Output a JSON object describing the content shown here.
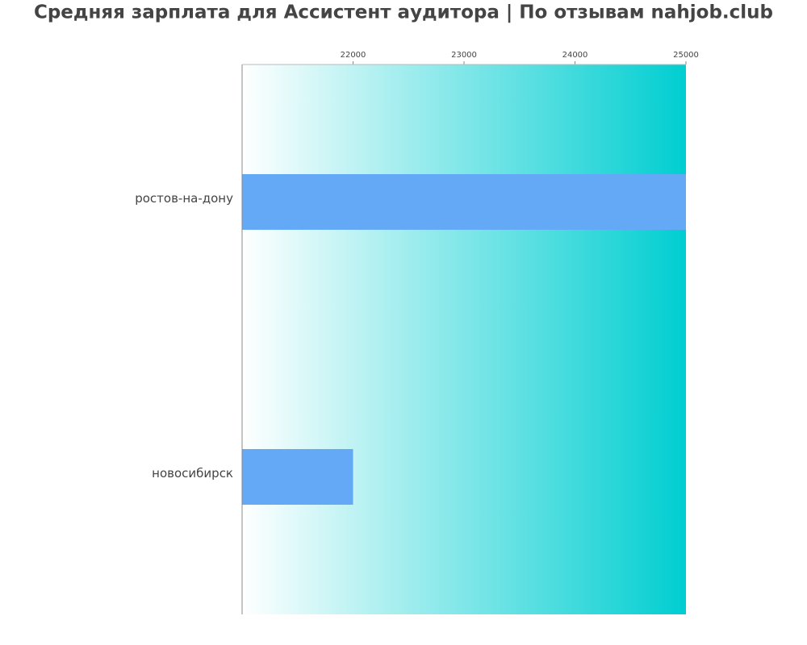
{
  "chart_data": {
    "type": "bar",
    "orientation": "horizontal",
    "title": "Средняя зарплата для Ассистент аудитора | По отзывам nahjob.club",
    "categories": [
      "ростов-на-дону",
      "новосибирск"
    ],
    "values": [
      25000,
      22000
    ],
    "color": "#64a9f5",
    "background_gradient": [
      "#ffffff",
      "#00ced1"
    ],
    "xlim": [
      21000,
      25000
    ],
    "xticks": [
      22000,
      23000,
      24000,
      25000
    ]
  }
}
